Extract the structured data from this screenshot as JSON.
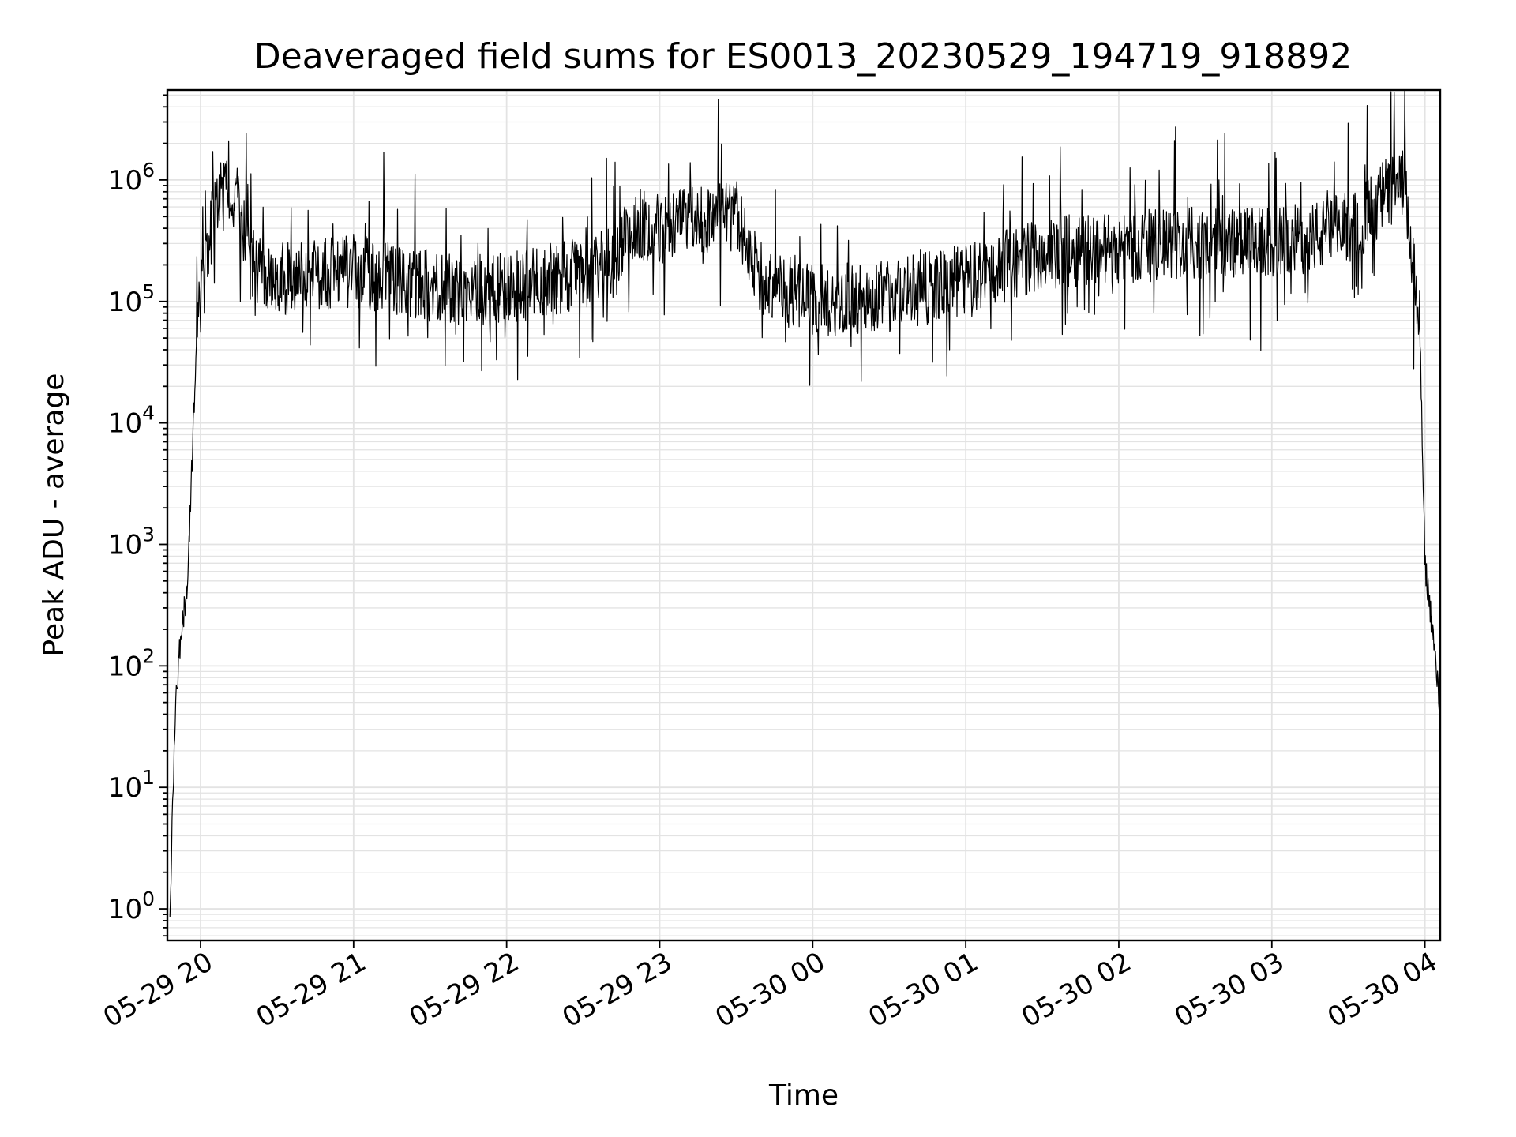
{
  "chart_data": {
    "type": "line",
    "title": "Deaveraged field sums for ES0013_20230529_194719_918892",
    "xlabel": "Time",
    "ylabel": "Peak ADU - average",
    "x_scale": "time",
    "y_scale": "log",
    "xlim": [
      "2023-05-29 19:47",
      "2023-05-30 04:06"
    ],
    "ylim": [
      0.55,
      5500000
    ],
    "x_ticks": [
      "05-29 20",
      "05-29 21",
      "05-29 22",
      "05-29 23",
      "05-30 00",
      "05-30 01",
      "05-30 02",
      "05-30 03",
      "05-30 04"
    ],
    "y_ticks": [
      {
        "value": 1,
        "base": "10",
        "exp": "0"
      },
      {
        "value": 10,
        "base": "10",
        "exp": "1"
      },
      {
        "value": 100,
        "base": "10",
        "exp": "2"
      },
      {
        "value": 1000,
        "base": "10",
        "exp": "3"
      },
      {
        "value": 10000,
        "base": "10",
        "exp": "4"
      },
      {
        "value": 100000,
        "base": "10",
        "exp": "5"
      },
      {
        "value": 1000000,
        "base": "10",
        "exp": "6"
      }
    ],
    "grid": true,
    "legend": "none",
    "series": [
      {
        "color": "#000000",
        "x": [
          "2023-05-29 19:48",
          "2023-05-29 19:50",
          "2023-05-29 19:52",
          "2023-05-29 19:55",
          "2023-05-29 19:58",
          "2023-05-29 20:00",
          "2023-05-29 20:05",
          "2023-05-29 20:10",
          "2023-05-29 20:15",
          "2023-05-29 20:20",
          "2023-05-29 20:30",
          "2023-05-29 20:40",
          "2023-05-29 21:00",
          "2023-05-29 21:20",
          "2023-05-29 21:40",
          "2023-05-29 22:00",
          "2023-05-29 22:20",
          "2023-05-29 22:40",
          "2023-05-29 22:50",
          "2023-05-29 23:00",
          "2023-05-29 23:15",
          "2023-05-29 23:30",
          "2023-05-29 23:40",
          "2023-05-29 23:50",
          "2023-05-30 00:00",
          "2023-05-30 00:30",
          "2023-05-30 01:00",
          "2023-05-30 01:30",
          "2023-05-30 02:00",
          "2023-05-30 02:30",
          "2023-05-30 03:00",
          "2023-05-30 03:20",
          "2023-05-30 03:35",
          "2023-05-30 03:45",
          "2023-05-30 03:52",
          "2023-05-30 03:58",
          "2023-05-30 04:00",
          "2023-05-30 04:03",
          "2023-05-30 04:06"
        ],
        "y": [
          1,
          40,
          150,
          500,
          30000,
          150000,
          500000,
          800000,
          650000,
          200000,
          150000,
          160000,
          180000,
          150000,
          120000,
          130000,
          150000,
          200000,
          450000,
          400000,
          450000,
          500000,
          150000,
          120000,
          100000,
          110000,
          150000,
          250000,
          280000,
          300000,
          300000,
          350000,
          450000,
          800000,
          900000,
          60000,
          700,
          200,
          40
        ]
      }
    ]
  }
}
